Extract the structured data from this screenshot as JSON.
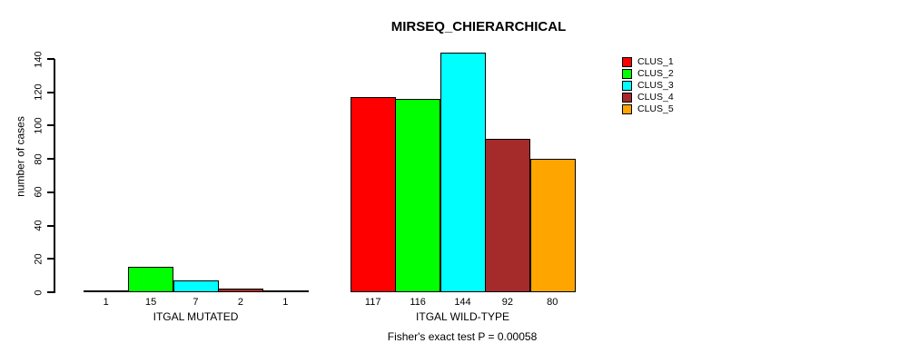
{
  "chart_data": {
    "type": "bar",
    "title": "MIRSEQ_CHIERARCHICAL",
    "ylabel": "number of cases",
    "xlabel": "",
    "annotation": "Fisher's exact test P = 0.00058",
    "categories": [
      "ITGAL MUTATED",
      "ITGAL WILD-TYPE"
    ],
    "series": [
      {
        "name": "CLUS_1",
        "color": "#FF0000",
        "values": [
          1,
          117
        ]
      },
      {
        "name": "CLUS_2",
        "color": "#00FF00",
        "values": [
          15,
          116
        ]
      },
      {
        "name": "CLUS_3",
        "color": "#00FFFF",
        "values": [
          7,
          144
        ]
      },
      {
        "name": "CLUS_4",
        "color": "#A52A2A",
        "values": [
          2,
          92
        ]
      },
      {
        "name": "CLUS_5",
        "color": "#FFA500",
        "values": [
          1,
          80
        ]
      }
    ],
    "bar_value_labels": true,
    "yticks": [
      0,
      20,
      40,
      60,
      80,
      100,
      120,
      140
    ],
    "ylim": [
      0,
      140
    ],
    "grid": false,
    "legend_position": "top-right",
    "axis_color": "#000000",
    "background_color": "#FFFFFF"
  }
}
